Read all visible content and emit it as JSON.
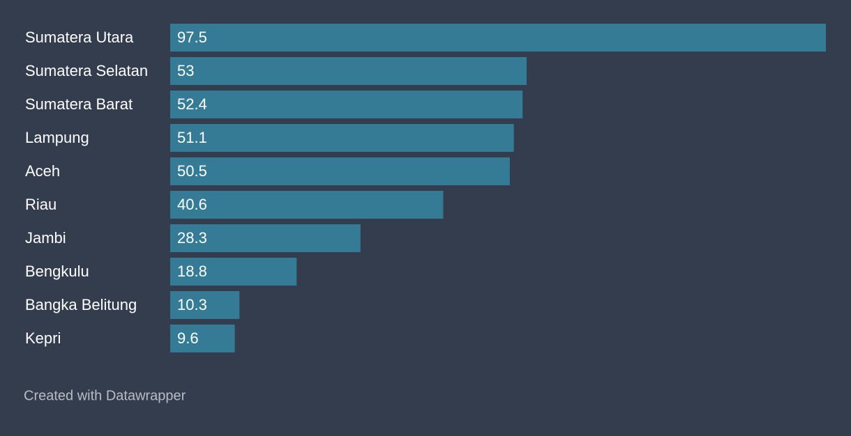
{
  "chart_data": {
    "type": "bar",
    "orientation": "horizontal",
    "categories": [
      "Sumatera Utara",
      "Sumatera Selatan",
      "Sumatera Barat",
      "Lampung",
      "Aceh",
      "Riau",
      "Jambi",
      "Bengkulu",
      "Bangka Belitung",
      "Kepri"
    ],
    "values": [
      97.5,
      53,
      52.4,
      51.1,
      50.5,
      40.6,
      28.3,
      18.8,
      10.3,
      9.6
    ],
    "color": "#367b96",
    "footer": "Created with Datawrapper"
  }
}
